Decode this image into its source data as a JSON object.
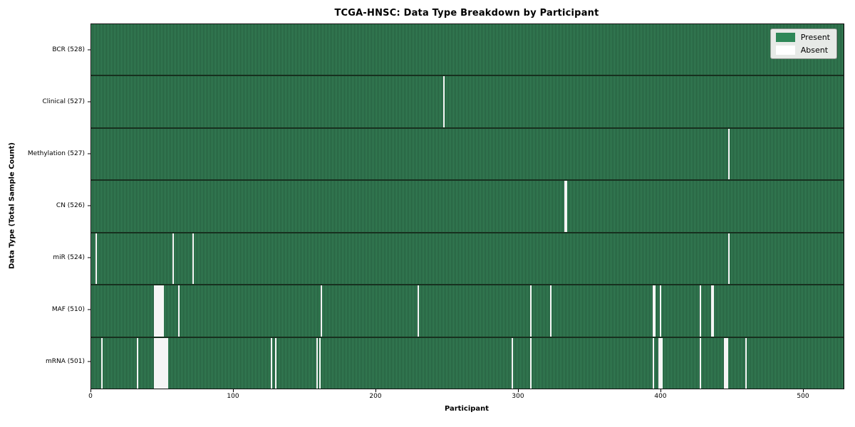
{
  "title": "TCGA-HNSC: Data Type Breakdown by Participant",
  "legend": {
    "items": [
      {
        "label": "Present",
        "color": "#2e8757"
      },
      {
        "label": "Absent",
        "color": "#ffffff"
      }
    ]
  },
  "colors": {
    "present_light": "#3a8a5d",
    "present_dark": "#215438",
    "absent": "#f5f5f5",
    "row_separator": "#17301f"
  },
  "chart_data": {
    "type": "heatmap",
    "title": "TCGA-HNSC: Data Type Breakdown by Participant",
    "x_label": "Participant",
    "y_label": "Data Type (Total Sample Count)",
    "n_participants": 528,
    "x_ticks": [
      0,
      100,
      200,
      300,
      400,
      500
    ],
    "legend_position": "upper right",
    "value_encoding": {
      "present": "green",
      "absent": "white"
    },
    "rows": [
      {
        "name": "BCR",
        "label": "BCR (528)",
        "present_count": 528,
        "absent_participants": []
      },
      {
        "name": "Clinical",
        "label": "Clinical (527)",
        "present_count": 527,
        "absent_participants": [
          247
        ]
      },
      {
        "name": "Methylation",
        "label": "Methylation (527)",
        "present_count": 527,
        "absent_participants": [
          447
        ]
      },
      {
        "name": "CN",
        "label": "CN (526)",
        "present_count": 526,
        "absent_participants": [
          332,
          333
        ]
      },
      {
        "name": "miR",
        "label": "miR (524)",
        "present_count": 524,
        "absent_participants": [
          3,
          57,
          71,
          447
        ]
      },
      {
        "name": "MAF",
        "label": "MAF (510)",
        "present_count": 510,
        "absent_participants": [
          44,
          45,
          46,
          47,
          48,
          49,
          50,
          61,
          161,
          229,
          308,
          322,
          394,
          395,
          399,
          427,
          435,
          436
        ]
      },
      {
        "name": "mRNA",
        "label": "mRNA (501)",
        "present_count": 501,
        "absent_participants": [
          7,
          32,
          44,
          45,
          46,
          47,
          48,
          49,
          50,
          51,
          52,
          53,
          126,
          129,
          158,
          160,
          295,
          308,
          394,
          398,
          399,
          400,
          427,
          444,
          445,
          446,
          459
        ]
      }
    ]
  }
}
